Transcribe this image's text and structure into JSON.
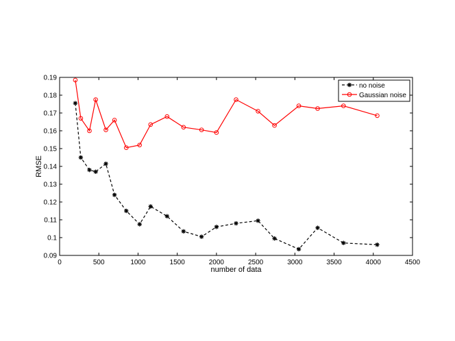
{
  "chart_data": {
    "type": "line",
    "title": "",
    "xlabel": "number of data",
    "ylabel": "RMSE",
    "xlim": [
      0,
      4500
    ],
    "ylim": [
      0.09,
      0.19
    ],
    "xticks": [
      0,
      500,
      1000,
      1500,
      2000,
      2500,
      3000,
      3500,
      4000,
      4500
    ],
    "xtick_labels": [
      "0",
      "500",
      "1000",
      "1500",
      "2000",
      "2500",
      "3000",
      "3500",
      "4000",
      "4500"
    ],
    "yticks": [
      0.09,
      0.1,
      0.11,
      0.12,
      0.13,
      0.14,
      0.15,
      0.16,
      0.17,
      0.18,
      0.19
    ],
    "ytick_labels": [
      "0.09",
      "0.1",
      "0.11",
      "0.12",
      "0.13",
      "0.14",
      "0.15",
      "0.16",
      "0.17",
      "0.18",
      "0.19"
    ],
    "grid": false,
    "legend_position": "top-right",
    "series": [
      {
        "name": "no noise",
        "color": "#000000",
        "line_style": "dashed",
        "marker": "star",
        "x": [
          200,
          270,
          380,
          460,
          590,
          700,
          850,
          1020,
          1160,
          1370,
          1580,
          1810,
          2000,
          2250,
          2530,
          2740,
          3050,
          3290,
          3620,
          4050
        ],
        "y": [
          0.1755,
          0.145,
          0.138,
          0.137,
          0.1415,
          0.124,
          0.115,
          0.1075,
          0.1175,
          0.112,
          0.1035,
          0.1005,
          0.106,
          0.108,
          0.1095,
          0.0995,
          0.0935,
          0.1055,
          0.097,
          0.096
        ]
      },
      {
        "name": "Gaussian noise",
        "color": "#ff0000",
        "line_style": "solid",
        "marker": "circle",
        "x": [
          200,
          270,
          380,
          460,
          590,
          700,
          850,
          1020,
          1160,
          1370,
          1580,
          1810,
          2000,
          2250,
          2530,
          2740,
          3050,
          3290,
          3620,
          4050
        ],
        "y": [
          0.1885,
          0.167,
          0.16,
          0.1775,
          0.1605,
          0.166,
          0.1505,
          0.152,
          0.1635,
          0.168,
          0.162,
          0.1605,
          0.159,
          0.1775,
          0.171,
          0.163,
          0.174,
          0.1725,
          0.174,
          0.1685
        ]
      }
    ]
  }
}
